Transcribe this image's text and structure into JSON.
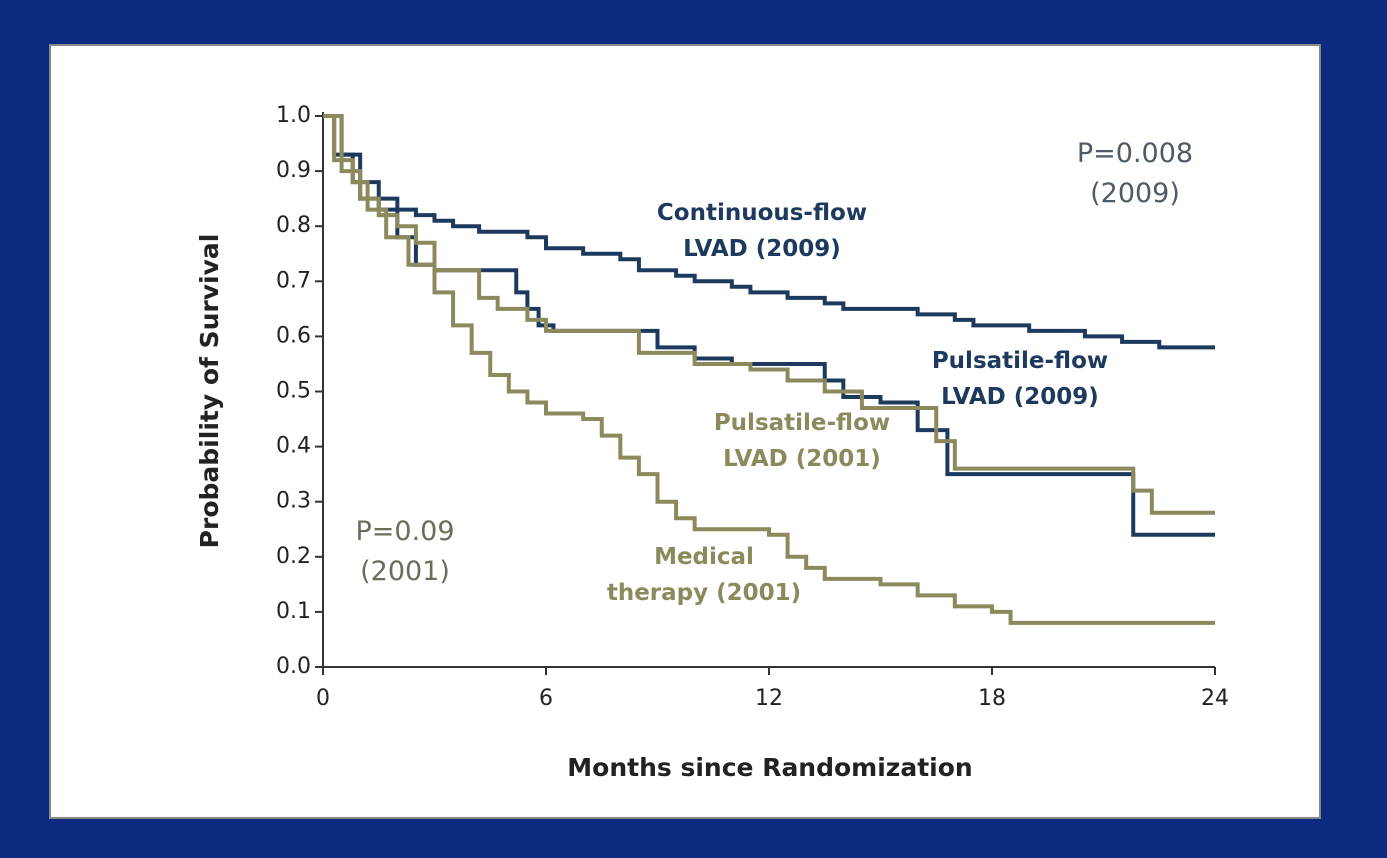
{
  "chart_data": {
    "type": "line",
    "step": "post",
    "xlabel": "Months since Randomization",
    "ylabel": "Probability of Survival",
    "xlim": [
      0,
      24
    ],
    "xticks": [
      0,
      6,
      12,
      18,
      24
    ],
    "ylim": [
      0,
      1
    ],
    "yticks": [
      {
        "value": 0,
        "label": "0.0"
      },
      0.1,
      0.2,
      0.3,
      0.4,
      0.5,
      0.6,
      0.7,
      0.8,
      0.9,
      {
        "value": 1,
        "label": "1.0"
      }
    ],
    "series": [
      {
        "label": [
          "Continuous-flow",
          "LVAD (2009)"
        ],
        "color": "#1d3a5e",
        "x": [
          0,
          0.5,
          1,
          1.5,
          2,
          2.5,
          3,
          3.5,
          4.2,
          5.5,
          6,
          7,
          8,
          8.5,
          9.5,
          10,
          11,
          11.5,
          12.5,
          13.5,
          14,
          16,
          17,
          17.5,
          19,
          20.5,
          21.5,
          22.5,
          24
        ],
        "values": [
          1.0,
          0.93,
          0.88,
          0.85,
          0.83,
          0.82,
          0.81,
          0.8,
          0.79,
          0.78,
          0.76,
          0.75,
          0.74,
          0.72,
          0.71,
          0.7,
          0.69,
          0.68,
          0.67,
          0.66,
          0.65,
          0.64,
          0.63,
          0.62,
          0.61,
          0.6,
          0.59,
          0.58,
          0.58
        ]
      },
      {
        "label": [
          "Pulsatile-flow",
          "LVAD (2009)"
        ],
        "color": "#1d3a5e",
        "x": [
          0,
          0.3,
          0.8,
          1,
          1.5,
          2,
          2.5,
          3,
          5.2,
          5.5,
          5.8,
          6.2,
          9,
          10,
          11,
          13.5,
          14,
          15,
          16,
          16.8,
          21.8,
          24
        ],
        "values": [
          1.0,
          0.93,
          0.88,
          0.85,
          0.83,
          0.78,
          0.73,
          0.72,
          0.68,
          0.65,
          0.62,
          0.61,
          0.58,
          0.56,
          0.55,
          0.52,
          0.49,
          0.48,
          0.43,
          0.35,
          0.24,
          0.24
        ]
      },
      {
        "label": [
          "Pulsatile-flow",
          "LVAD (2001)"
        ],
        "color": "#8c8a5c",
        "x": [
          0,
          0.5,
          1,
          1.5,
          2,
          2.5,
          3,
          4.2,
          4.7,
          5.5,
          6,
          8.5,
          10,
          11.5,
          12.5,
          13.5,
          14.5,
          16.5,
          17,
          21.8,
          22.3,
          24
        ],
        "values": [
          1.0,
          0.9,
          0.85,
          0.82,
          0.8,
          0.77,
          0.72,
          0.67,
          0.65,
          0.63,
          0.61,
          0.57,
          0.55,
          0.54,
          0.52,
          0.5,
          0.47,
          0.41,
          0.36,
          0.32,
          0.28,
          0.28
        ]
      },
      {
        "label": [
          "Medical",
          "therapy (2001)"
        ],
        "color": "#8c8a5c",
        "x": [
          0,
          0.3,
          0.8,
          1.2,
          1.7,
          2.3,
          3,
          3.5,
          4,
          4.5,
          5,
          5.5,
          6,
          7,
          7.5,
          8,
          8.5,
          9,
          9.5,
          10,
          12,
          12.5,
          13,
          13.5,
          15,
          16,
          17,
          18,
          18.5,
          24
        ],
        "values": [
          1.0,
          0.92,
          0.88,
          0.83,
          0.78,
          0.73,
          0.68,
          0.62,
          0.57,
          0.53,
          0.5,
          0.48,
          0.46,
          0.45,
          0.42,
          0.38,
          0.35,
          0.3,
          0.27,
          0.25,
          0.24,
          0.2,
          0.18,
          0.16,
          0.15,
          0.13,
          0.11,
          0.1,
          0.08,
          0.08
        ]
      }
    ],
    "annotations": [
      {
        "lines": [
          "P=0.008",
          "(2009)"
        ],
        "color": "#4e5a66"
      },
      {
        "lines": [
          "P=0.09",
          "(2001)"
        ],
        "color": "#6e6c58"
      }
    ]
  }
}
